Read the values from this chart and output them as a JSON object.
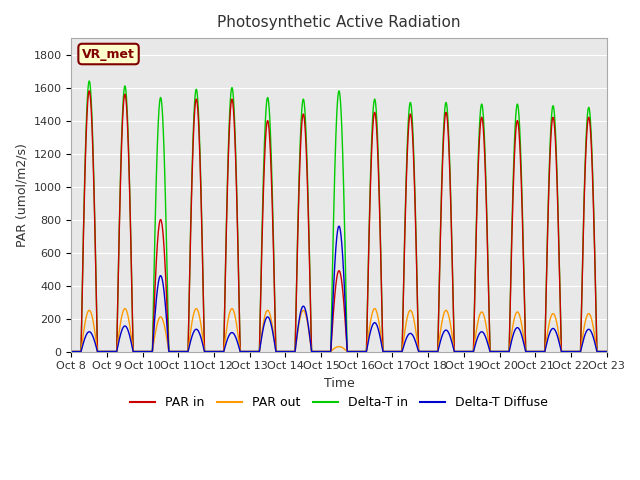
{
  "title": "Photosynthetic Active Radiation",
  "ylabel": "PAR (umol/m2/s)",
  "xlabel": "Time",
  "xlim_start": 0,
  "xlim_end": 15,
  "ylim": [
    0,
    1900
  ],
  "yticks": [
    0,
    200,
    400,
    600,
    800,
    1000,
    1200,
    1400,
    1600,
    1800
  ],
  "xtick_labels": [
    "Oct 8",
    "Oct 9",
    "Oct 10",
    "Oct 11",
    "Oct 12",
    "Oct 13",
    "Oct 14",
    "Oct 15",
    "Oct 16",
    "Oct 17",
    "Oct 18",
    "Oct 19",
    "Oct 20",
    "Oct 21",
    "Oct 22",
    "Oct 23"
  ],
  "bg_color": "#e8e8e8",
  "plot_bg_color": "#e8e8e8",
  "label_box_text": "VR_met",
  "label_box_color": "#ffffcc",
  "label_box_edge_color": "#800000",
  "colors": {
    "PAR in": "#cc0000",
    "PAR out": "#ff9900",
    "Delta-T in": "#00cc00",
    "Delta-T Diffuse": "#0000cc"
  },
  "legend_labels": [
    "PAR in",
    "PAR out",
    "Delta-T in",
    "Delta-T Diffuse"
  ]
}
